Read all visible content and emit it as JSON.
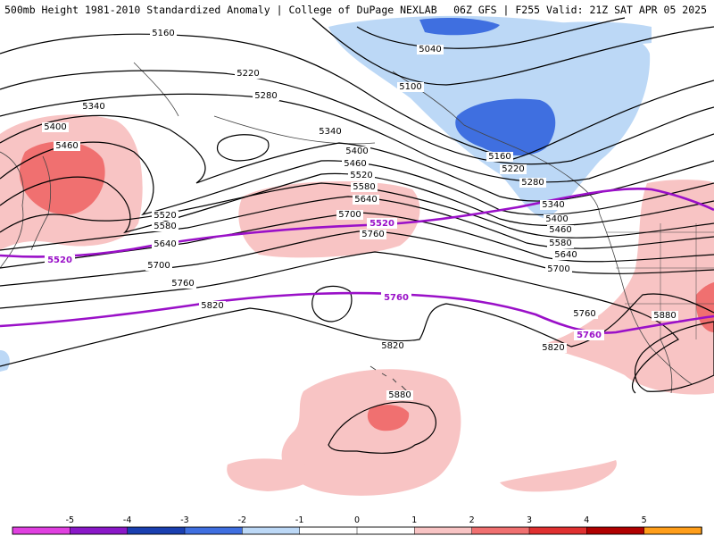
{
  "header": {
    "left": "500mb Height 1981-2010 Standardized Anomaly | College of DuPage NEXLAB",
    "right": "06Z GFS | F255 Valid: 21Z SAT APR 05 2025"
  },
  "colors": {
    "anom_neg5": "#e040e0",
    "anom_neg4": "#8a18c8",
    "anom_neg3": "#1a3fb0",
    "anom_neg2": "#3f6fe0",
    "anom_neg1": "#bcd8f6",
    "anom_pos1": "#f8c4c4",
    "anom_pos2": "#f07070",
    "anom_pos3": "#e03030",
    "anom_pos4": "#b00000",
    "anom_pos5": "#ff9e1a",
    "contour": "#000000",
    "highlight_contour": "#9a10c8"
  },
  "contour_labels": [
    "5040",
    "5100",
    "5160",
    "5220",
    "5280",
    "5340",
    "5400",
    "5460",
    "5520",
    "5580",
    "5640",
    "5700",
    "5760",
    "5820",
    "5880"
  ],
  "highlight_labels": [
    "5520",
    "5760"
  ],
  "colorbar": {
    "ticks": [
      "-5",
      "-4",
      "-3",
      "-2",
      "-1",
      "0",
      "1",
      "2",
      "3",
      "4",
      "5"
    ]
  }
}
